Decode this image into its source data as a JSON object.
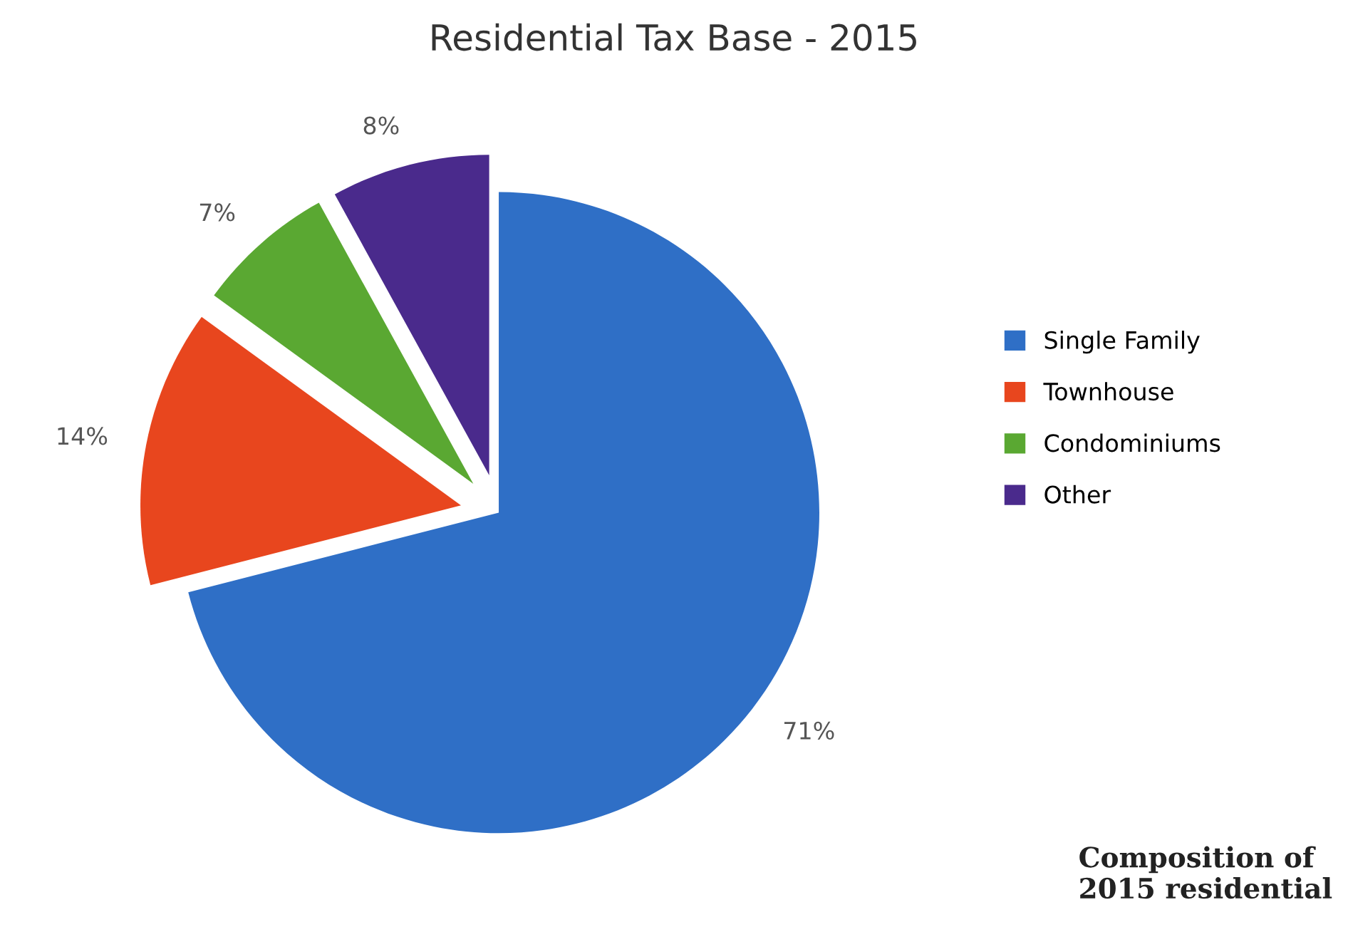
{
  "chart_data": {
    "type": "pie",
    "title": "Residential Tax Base - 2015",
    "categories": [
      "Single Family",
      "Townhouse",
      "Condominiums",
      "Other"
    ],
    "values": [
      71,
      14,
      7,
      8
    ],
    "colors": [
      "#2f6fc6",
      "#e8461e",
      "#5aa832",
      "#4a2a8c"
    ],
    "value_labels": [
      "71%",
      "14%",
      "7%",
      "8%"
    ],
    "legend": "right",
    "annotations": [
      "Composition of 2015 residential"
    ]
  }
}
